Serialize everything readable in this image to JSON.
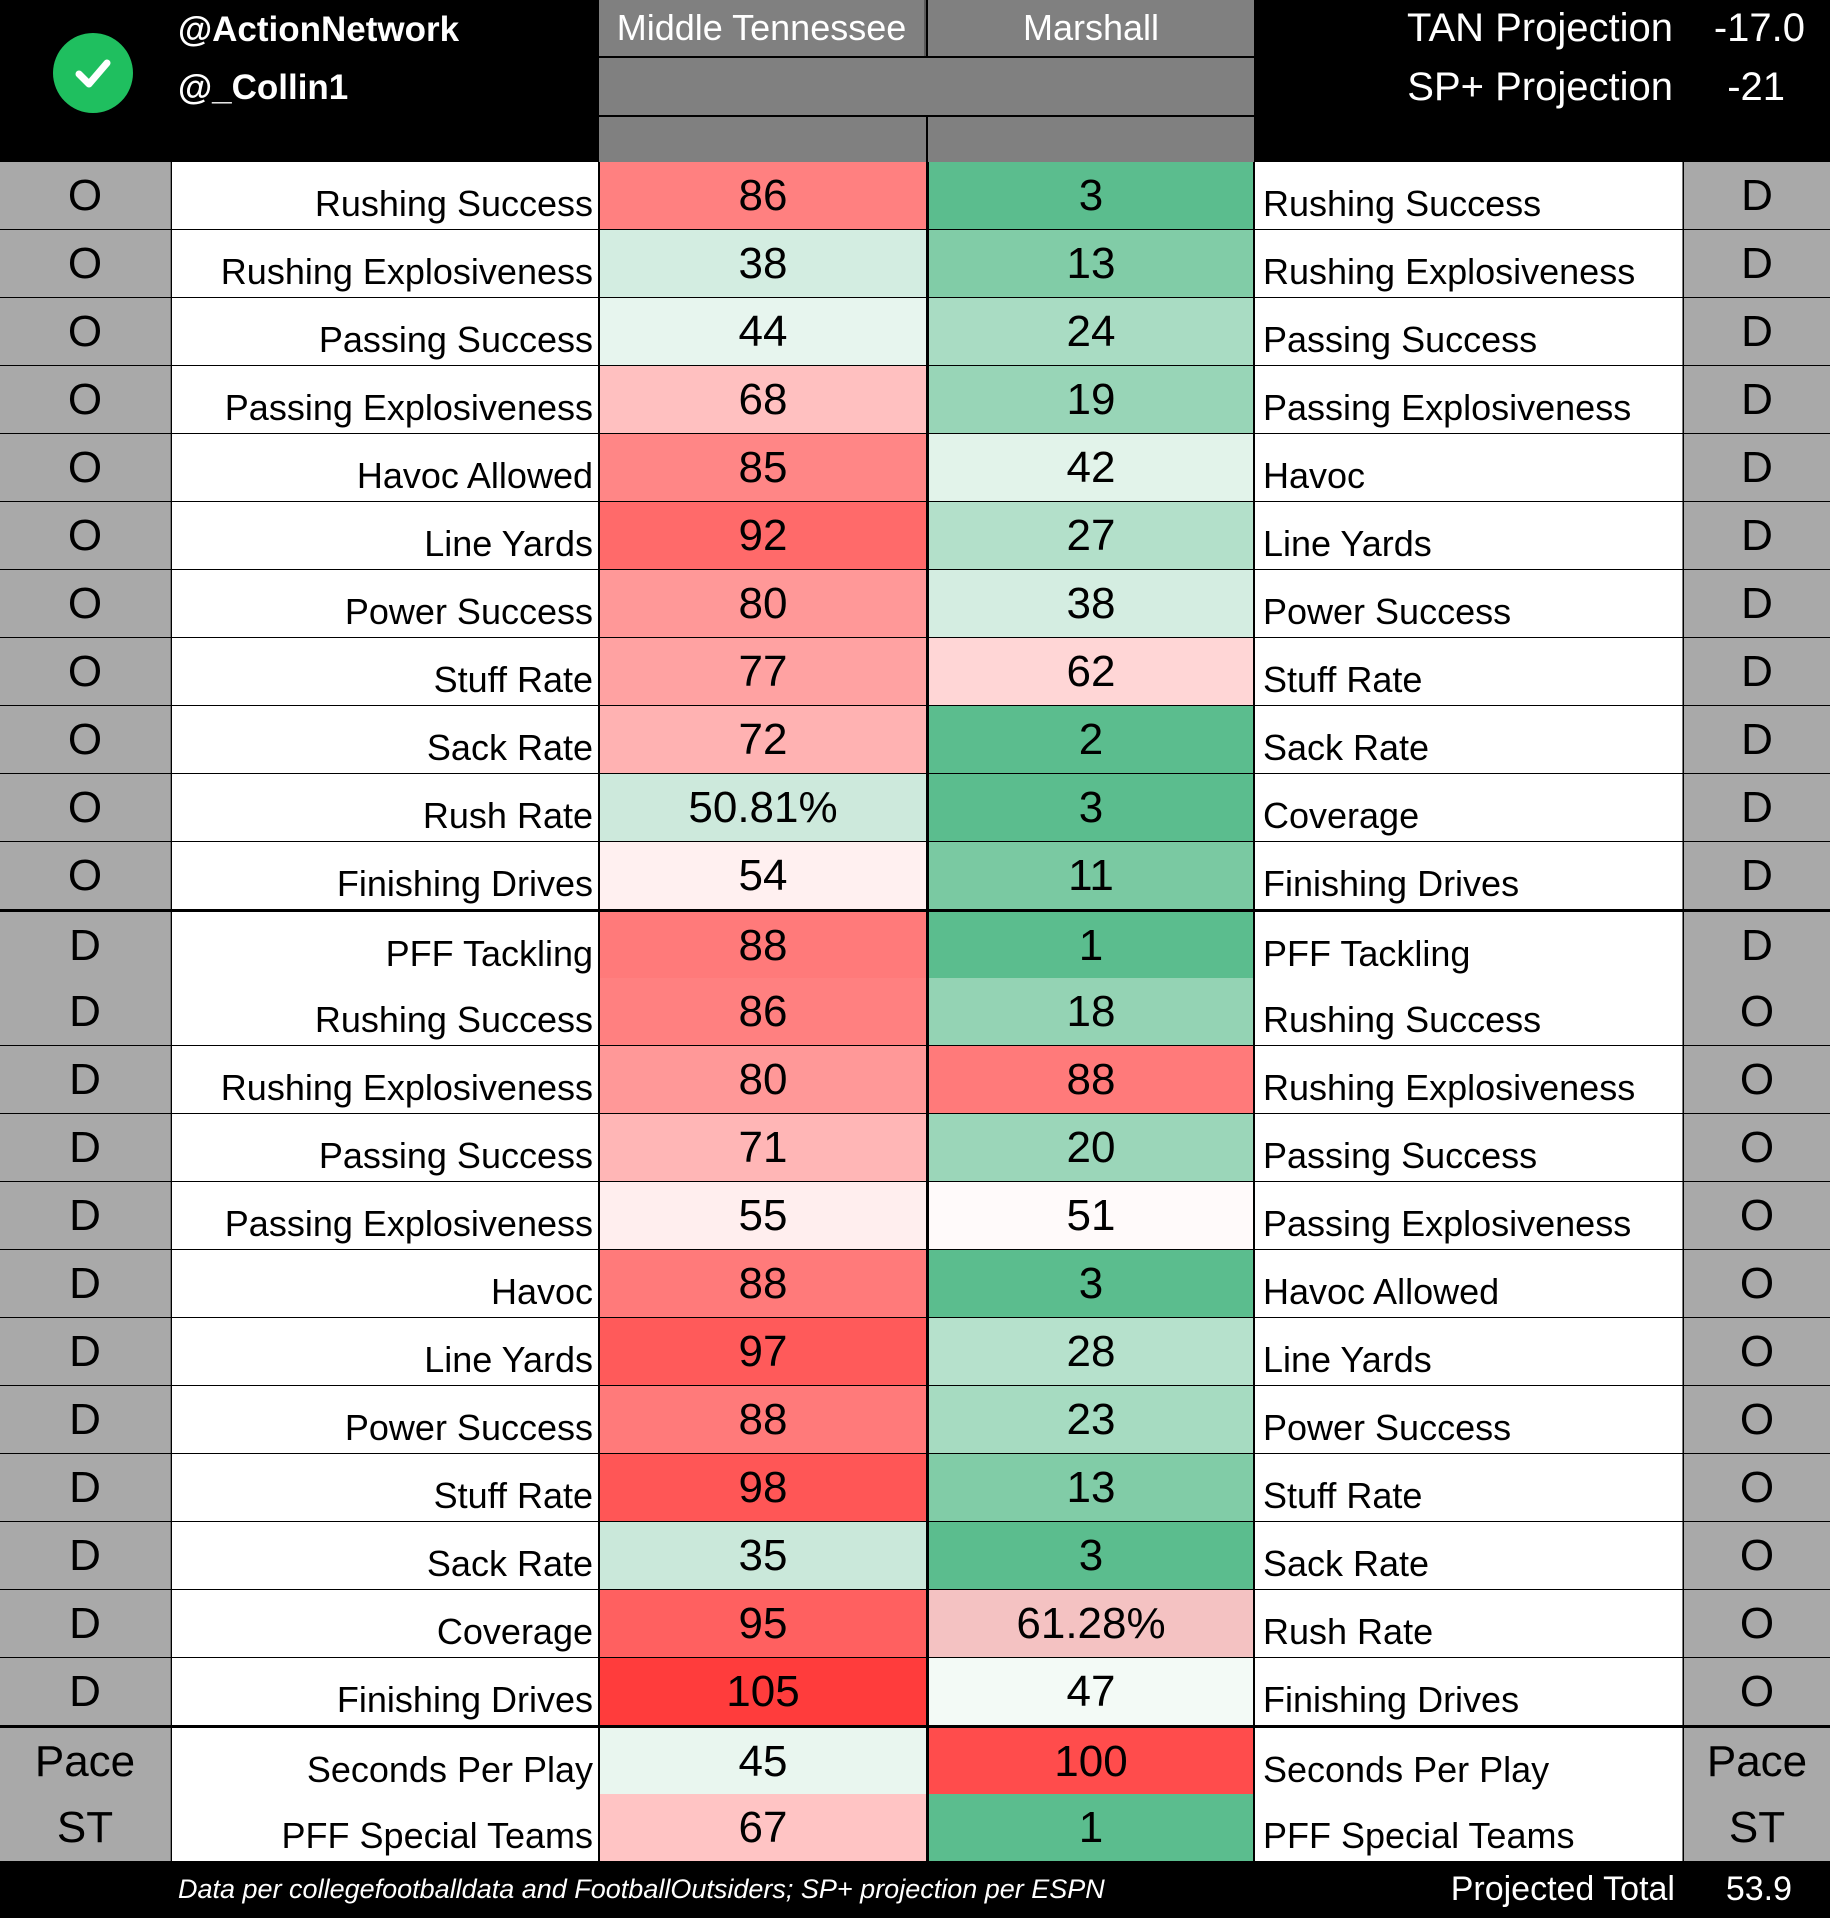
{
  "header": {
    "handles": [
      "@ActionNetwork",
      "@_Collin1"
    ],
    "badge_icon": "checkmark-icon",
    "badge_color": "#1fbf5f",
    "team_a": "Middle Tennessee",
    "team_b": "Marshall",
    "tan_projection_label": "TAN Projection",
    "tan_projection_value": "-17.0",
    "sp_projection_label": "SP+ Projection",
    "sp_projection_value": "-21"
  },
  "rows": [
    {
      "side_left": "O",
      "label_left": "Rushing Success",
      "value_a": "86",
      "color_a": "#ff8080",
      "value_b": "3",
      "color_b": "#5bbd8e",
      "label_right": "Rushing Success",
      "side_right": "D"
    },
    {
      "side_left": "O",
      "label_left": "Rushing Explosiveness",
      "value_a": "38",
      "color_a": "#d3ede1",
      "value_b": "13",
      "color_b": "#81cca7",
      "label_right": "Rushing Explosiveness",
      "side_right": "D"
    },
    {
      "side_left": "O",
      "label_left": "Passing Success",
      "value_a": "44",
      "color_a": "#e7f5ee",
      "value_b": "24",
      "color_b": "#a9dcc3",
      "label_right": "Passing Success",
      "side_right": "D"
    },
    {
      "side_left": "O",
      "label_left": "Passing Explosiveness",
      "value_a": "68",
      "color_a": "#ffc0c0",
      "value_b": "19",
      "color_b": "#98d5b7",
      "label_right": "Passing Explosiveness",
      "side_right": "D"
    },
    {
      "side_left": "O",
      "label_left": "Havoc Allowed",
      "value_a": "85",
      "color_a": "#ff8686",
      "value_b": "42",
      "color_b": "#e2f3ea",
      "label_right": "Havoc",
      "side_right": "D"
    },
    {
      "side_left": "O",
      "label_left": "Line Yards",
      "value_a": "92",
      "color_a": "#ff6a6a",
      "value_b": "27",
      "color_b": "#b3e0ca",
      "label_right": "Line Yards",
      "side_right": "D"
    },
    {
      "side_left": "O",
      "label_left": "Power Success",
      "value_a": "80",
      "color_a": "#ff9898",
      "value_b": "38",
      "color_b": "#d4ede1",
      "label_right": "Power Success",
      "side_right": "D"
    },
    {
      "side_left": "O",
      "label_left": "Stuff Rate",
      "value_a": "77",
      "color_a": "#ffa2a2",
      "value_b": "62",
      "color_b": "#ffd6d6",
      "label_right": "Stuff Rate",
      "side_right": "D"
    },
    {
      "side_left": "O",
      "label_left": "Sack Rate",
      "value_a": "72",
      "color_a": "#ffb2b2",
      "value_b": "2",
      "color_b": "#5bbd8e",
      "label_right": "Sack Rate",
      "side_right": "D"
    },
    {
      "side_left": "O",
      "label_left": "Rush Rate",
      "value_a": "50.81%",
      "color_a": "#cde9dc",
      "value_b": "3",
      "color_b": "#5bbd8e",
      "label_right": "Coverage",
      "side_right": "D"
    },
    {
      "side_left": "O",
      "label_left": "Finishing Drives",
      "value_a": "54",
      "color_a": "#fff0f0",
      "value_b": "11",
      "color_b": "#7ac9a2",
      "label_right": "Finishing Drives",
      "side_right": "D"
    },
    {
      "side_left": "D",
      "label_left": "PFF Tackling",
      "value_a": "88",
      "color_a": "#ff7a7a",
      "value_b": "1",
      "color_b": "#5bbd8e",
      "label_right": "PFF Tackling",
      "side_right": "D"
    },
    {
      "side_left": "D",
      "label_left": "Rushing Success",
      "value_a": "86",
      "color_a": "#ff8080",
      "value_b": "18",
      "color_b": "#94d3b4",
      "label_right": "Rushing Success",
      "side_right": "O"
    },
    {
      "side_left": "D",
      "label_left": "Rushing Explosiveness",
      "value_a": "80",
      "color_a": "#ff9898",
      "value_b": "88",
      "color_b": "#ff7a7a",
      "label_right": "Rushing Explosiveness",
      "side_right": "O"
    },
    {
      "side_left": "D",
      "label_left": "Passing Success",
      "value_a": "71",
      "color_a": "#ffb6b6",
      "value_b": "20",
      "color_b": "#9bd6b9",
      "label_right": "Passing Success",
      "side_right": "O"
    },
    {
      "side_left": "D",
      "label_left": "Passing Explosiveness",
      "value_a": "55",
      "color_a": "#ffeeee",
      "value_b": "51",
      "color_b": "#fffafa",
      "label_right": "Passing Explosiveness",
      "side_right": "O"
    },
    {
      "side_left": "D",
      "label_left": "Havoc",
      "value_a": "88",
      "color_a": "#ff7a7a",
      "value_b": "3",
      "color_b": "#5bbd8e",
      "label_right": "Havoc Allowed",
      "side_right": "O"
    },
    {
      "side_left": "D",
      "label_left": "Line Yards",
      "value_a": "97",
      "color_a": "#ff5a5a",
      "value_b": "28",
      "color_b": "#b6e1cc",
      "label_right": "Line Yards",
      "side_right": "O"
    },
    {
      "side_left": "D",
      "label_left": "Power Success",
      "value_a": "88",
      "color_a": "#ff7a7a",
      "value_b": "23",
      "color_b": "#a6dbc1",
      "label_right": "Power Success",
      "side_right": "O"
    },
    {
      "side_left": "D",
      "label_left": "Stuff Rate",
      "value_a": "98",
      "color_a": "#ff5656",
      "value_b": "13",
      "color_b": "#81cca7",
      "label_right": "Stuff Rate",
      "side_right": "O"
    },
    {
      "side_left": "D",
      "label_left": "Sack Rate",
      "value_a": "35",
      "color_a": "#cae8da",
      "value_b": "3",
      "color_b": "#5bbd8e",
      "label_right": "Sack Rate",
      "side_right": "O"
    },
    {
      "side_left": "D",
      "label_left": "Coverage",
      "value_a": "95",
      "color_a": "#ff6060",
      "value_b": "61.28%",
      "color_b": "#f4c2c2",
      "label_right": "Rush Rate",
      "side_right": "O"
    },
    {
      "side_left": "D",
      "label_left": "Finishing Drives",
      "value_a": "105",
      "color_a": "#ff3c3c",
      "value_b": "47",
      "color_b": "#f3faf6",
      "label_right": "Finishing Drives",
      "side_right": "O"
    },
    {
      "side_left": "Pace",
      "label_left": "Seconds Per Play",
      "value_a": "45",
      "color_a": "#e9f6ef",
      "value_b": "100",
      "color_b": "#ff4c4c",
      "label_right": "Seconds Per Play",
      "side_right": "Pace"
    },
    {
      "side_left": "ST",
      "label_left": "PFF Special Teams",
      "value_a": "67",
      "color_a": "#ffc4c4",
      "value_b": "1",
      "color_b": "#5bbd8e",
      "label_right": "PFF Special Teams",
      "side_right": "ST"
    }
  ],
  "footer": {
    "source_note": "Data per collegefootballdata and FootballOutsiders; SP+ projection per ESPN",
    "total_label": "Projected Total",
    "total_value": "53.9"
  }
}
